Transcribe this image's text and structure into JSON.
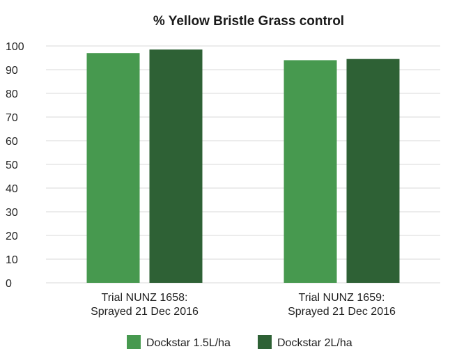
{
  "chart_data": {
    "type": "bar",
    "title": "% Yellow Bristle Grass control",
    "categories": [
      [
        "Trial NUNZ 1658:",
        "Sprayed 21 Dec 2016"
      ],
      [
        "Trial NUNZ 1659:",
        "Sprayed 21 Dec 2016"
      ]
    ],
    "series": [
      {
        "name": "Dockstar 1.5L/ha",
        "color": "#47994f",
        "values": [
          97,
          94
        ]
      },
      {
        "name": "Dockstar 2L/ha",
        "color": "#2e6135",
        "values": [
          98.5,
          94.5
        ]
      }
    ],
    "ylim": [
      0,
      100
    ],
    "yticks": [
      0,
      10,
      20,
      30,
      40,
      50,
      60,
      70,
      80,
      90,
      100
    ],
    "grid": true,
    "legend_position": "bottom"
  }
}
